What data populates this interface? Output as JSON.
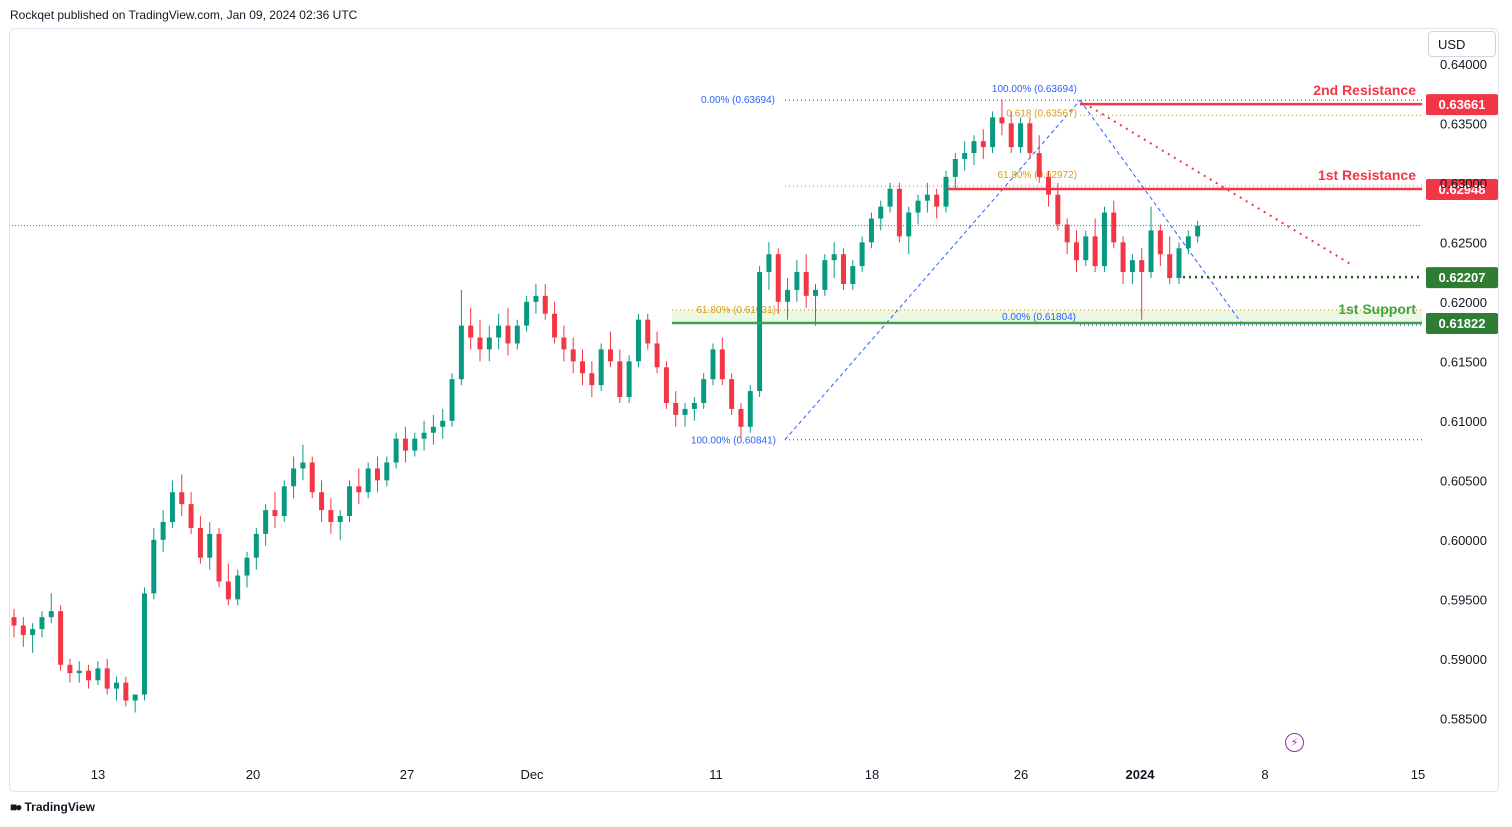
{
  "header": {
    "publisher_line": "Rockqet published on TradingView.com, Jan 09, 2024 02:36 UTC"
  },
  "currency_button": "USD",
  "footer": {
    "brand": "TradingView",
    "icon": "tradingview-logo-icon"
  },
  "colors": {
    "up": "#089981",
    "down": "#f23645",
    "resistance": "#f23645",
    "support": "#43a047",
    "fib_blue": "#2962ff",
    "fib_gold": "#d4a017",
    "trend_red": "#f23645",
    "zone_fill": "#e8f5e0"
  },
  "chart_data": {
    "type": "candlestick",
    "symbol_quote": "USD",
    "y_axis_ticks": [
      "0.64000",
      "0.63500",
      "0.63000",
      "0.62500",
      "0.62000",
      "0.61500",
      "0.61000",
      "0.60500",
      "0.60000",
      "0.59500",
      "0.59000",
      "0.58500"
    ],
    "ylim": [
      0.5815,
      0.642
    ],
    "x_axis_ticks": [
      "13",
      "20",
      "27",
      "Dec",
      "11",
      "18",
      "26",
      "2024",
      "8",
      "15"
    ],
    "last_price": 0.6264,
    "levels": [
      {
        "name": "2nd Resistance",
        "value": 0.63661,
        "label": "0.63661",
        "kind": "resistance"
      },
      {
        "name": "1st Resistance",
        "value": 0.62948,
        "label": "0.62948",
        "kind": "resistance"
      },
      {
        "name": "",
        "value": 0.62207,
        "label": "0.62207",
        "kind": "support-dotted"
      },
      {
        "name": "1st Support",
        "value": 0.61822,
        "label": "0.61822",
        "kind": "support"
      }
    ],
    "fib_labels": [
      {
        "text": "0.00% (0.63694)",
        "value": 0.63694
      },
      {
        "text": "100.00% (0.63694)",
        "value": 0.63694
      },
      {
        "text": "0.618 (0.63567)",
        "value": 0.63567
      },
      {
        "text": "61.80% (0.62972)",
        "value": 0.62972
      },
      {
        "text": "61.80% (0.61931)",
        "value": 0.61931
      },
      {
        "text": "0.00% (0.61804)",
        "value": 0.61804
      },
      {
        "text": "100.00% (0.60841)",
        "value": 0.60841
      }
    ],
    "candles": [
      [
        0.5935,
        0.5942,
        0.5918,
        0.5928
      ],
      [
        0.5928,
        0.5935,
        0.591,
        0.592
      ],
      [
        0.592,
        0.593,
        0.5905,
        0.5925
      ],
      [
        0.5925,
        0.594,
        0.5918,
        0.5935
      ],
      [
        0.5935,
        0.5955,
        0.593,
        0.594
      ],
      [
        0.594,
        0.5945,
        0.589,
        0.5895
      ],
      [
        0.5895,
        0.59,
        0.588,
        0.5888
      ],
      [
        0.5888,
        0.5898,
        0.588,
        0.589
      ],
      [
        0.589,
        0.5895,
        0.5875,
        0.5882
      ],
      [
        0.5882,
        0.5898,
        0.5878,
        0.5892
      ],
      [
        0.5892,
        0.59,
        0.587,
        0.5875
      ],
      [
        0.5875,
        0.5885,
        0.5865,
        0.588
      ],
      [
        0.588,
        0.5885,
        0.586,
        0.5865
      ],
      [
        0.5865,
        0.587,
        0.5855,
        0.587
      ],
      [
        0.587,
        0.596,
        0.5865,
        0.5955
      ],
      [
        0.5955,
        0.601,
        0.595,
        0.6
      ],
      [
        0.6,
        0.6025,
        0.599,
        0.6015
      ],
      [
        0.6015,
        0.605,
        0.601,
        0.604
      ],
      [
        0.604,
        0.6055,
        0.602,
        0.603
      ],
      [
        0.603,
        0.604,
        0.6005,
        0.601
      ],
      [
        0.601,
        0.602,
        0.598,
        0.5985
      ],
      [
        0.5985,
        0.6015,
        0.5975,
        0.6005
      ],
      [
        0.6005,
        0.601,
        0.596,
        0.5965
      ],
      [
        0.5965,
        0.598,
        0.5945,
        0.595
      ],
      [
        0.595,
        0.5975,
        0.5945,
        0.597
      ],
      [
        0.597,
        0.599,
        0.596,
        0.5985
      ],
      [
        0.5985,
        0.601,
        0.5975,
        0.6005
      ],
      [
        0.6005,
        0.603,
        0.5995,
        0.6025
      ],
      [
        0.6025,
        0.604,
        0.601,
        0.602
      ],
      [
        0.602,
        0.605,
        0.6015,
        0.6045
      ],
      [
        0.6045,
        0.607,
        0.6035,
        0.606
      ],
      [
        0.606,
        0.608,
        0.605,
        0.6065
      ],
      [
        0.6065,
        0.607,
        0.6035,
        0.604
      ],
      [
        0.604,
        0.605,
        0.6015,
        0.6025
      ],
      [
        0.6025,
        0.6035,
        0.6005,
        0.6015
      ],
      [
        0.6015,
        0.6025,
        0.6,
        0.602
      ],
      [
        0.602,
        0.605,
        0.6015,
        0.6045
      ],
      [
        0.6045,
        0.606,
        0.603,
        0.604
      ],
      [
        0.604,
        0.6065,
        0.6035,
        0.606
      ],
      [
        0.606,
        0.607,
        0.604,
        0.605
      ],
      [
        0.605,
        0.607,
        0.6045,
        0.6065
      ],
      [
        0.6065,
        0.609,
        0.606,
        0.6085
      ],
      [
        0.6085,
        0.6095,
        0.6065,
        0.6075
      ],
      [
        0.6075,
        0.609,
        0.607,
        0.6085
      ],
      [
        0.6085,
        0.61,
        0.6075,
        0.609
      ],
      [
        0.609,
        0.6105,
        0.608,
        0.6095
      ],
      [
        0.6095,
        0.611,
        0.6085,
        0.61
      ],
      [
        0.61,
        0.614,
        0.6095,
        0.6135
      ],
      [
        0.6135,
        0.621,
        0.613,
        0.618
      ],
      [
        0.618,
        0.6195,
        0.616,
        0.617
      ],
      [
        0.617,
        0.6185,
        0.615,
        0.616
      ],
      [
        0.616,
        0.618,
        0.615,
        0.617
      ],
      [
        0.617,
        0.619,
        0.616,
        0.618
      ],
      [
        0.618,
        0.6195,
        0.6155,
        0.6165
      ],
      [
        0.6165,
        0.6185,
        0.616,
        0.618
      ],
      [
        0.618,
        0.6205,
        0.6175,
        0.62
      ],
      [
        0.62,
        0.6215,
        0.619,
        0.6205
      ],
      [
        0.6205,
        0.6215,
        0.6185,
        0.619
      ],
      [
        0.619,
        0.62,
        0.6165,
        0.617
      ],
      [
        0.617,
        0.618,
        0.615,
        0.616
      ],
      [
        0.616,
        0.617,
        0.614,
        0.615
      ],
      [
        0.615,
        0.616,
        0.613,
        0.614
      ],
      [
        0.614,
        0.615,
        0.612,
        0.613
      ],
      [
        0.613,
        0.6165,
        0.6125,
        0.616
      ],
      [
        0.616,
        0.6175,
        0.6145,
        0.615
      ],
      [
        0.615,
        0.616,
        0.6115,
        0.612
      ],
      [
        0.612,
        0.6155,
        0.6115,
        0.615
      ],
      [
        0.615,
        0.619,
        0.6145,
        0.6185
      ],
      [
        0.6185,
        0.619,
        0.616,
        0.6165
      ],
      [
        0.6165,
        0.6175,
        0.614,
        0.6145
      ],
      [
        0.6145,
        0.615,
        0.611,
        0.6115
      ],
      [
        0.6115,
        0.6125,
        0.6095,
        0.6105
      ],
      [
        0.6105,
        0.6115,
        0.6095,
        0.611
      ],
      [
        0.611,
        0.612,
        0.61,
        0.6115
      ],
      [
        0.6115,
        0.614,
        0.611,
        0.6135
      ],
      [
        0.6135,
        0.6165,
        0.613,
        0.616
      ],
      [
        0.616,
        0.617,
        0.613,
        0.6135
      ],
      [
        0.6135,
        0.614,
        0.6105,
        0.611
      ],
      [
        0.611,
        0.6115,
        0.6085,
        0.6095
      ],
      [
        0.6095,
        0.613,
        0.609,
        0.6125
      ],
      [
        0.6125,
        0.623,
        0.612,
        0.6225
      ],
      [
        0.6225,
        0.625,
        0.621,
        0.624
      ],
      [
        0.624,
        0.6245,
        0.619,
        0.62
      ],
      [
        0.62,
        0.622,
        0.6185,
        0.621
      ],
      [
        0.621,
        0.6235,
        0.62,
        0.6225
      ],
      [
        0.6225,
        0.624,
        0.6195,
        0.6205
      ],
      [
        0.6205,
        0.6215,
        0.618,
        0.621
      ],
      [
        0.621,
        0.624,
        0.6205,
        0.6235
      ],
      [
        0.6235,
        0.625,
        0.622,
        0.624
      ],
      [
        0.624,
        0.6245,
        0.621,
        0.6215
      ],
      [
        0.6215,
        0.6235,
        0.621,
        0.623
      ],
      [
        0.623,
        0.6255,
        0.6225,
        0.625
      ],
      [
        0.625,
        0.6275,
        0.6245,
        0.627
      ],
      [
        0.627,
        0.6285,
        0.626,
        0.628
      ],
      [
        0.628,
        0.63,
        0.6275,
        0.6295
      ],
      [
        0.6295,
        0.63,
        0.625,
        0.6255
      ],
      [
        0.6255,
        0.628,
        0.624,
        0.6275
      ],
      [
        0.6275,
        0.629,
        0.6265,
        0.6285
      ],
      [
        0.6285,
        0.63,
        0.6275,
        0.629
      ],
      [
        0.629,
        0.6295,
        0.627,
        0.628
      ],
      [
        0.628,
        0.631,
        0.6275,
        0.6305
      ],
      [
        0.6305,
        0.6325,
        0.6295,
        0.632
      ],
      [
        0.632,
        0.6335,
        0.631,
        0.6325
      ],
      [
        0.6325,
        0.634,
        0.6315,
        0.6335
      ],
      [
        0.6335,
        0.6345,
        0.632,
        0.633
      ],
      [
        0.633,
        0.636,
        0.6325,
        0.6355
      ],
      [
        0.6355,
        0.637,
        0.634,
        0.635
      ],
      [
        0.635,
        0.636,
        0.6325,
        0.633
      ],
      [
        0.633,
        0.6355,
        0.6325,
        0.635
      ],
      [
        0.635,
        0.6355,
        0.632,
        0.6325
      ],
      [
        0.6325,
        0.634,
        0.63,
        0.6305
      ],
      [
        0.6305,
        0.631,
        0.628,
        0.629
      ],
      [
        0.629,
        0.63,
        0.626,
        0.6265
      ],
      [
        0.6265,
        0.627,
        0.624,
        0.625
      ],
      [
        0.625,
        0.626,
        0.6225,
        0.6235
      ],
      [
        0.6235,
        0.626,
        0.623,
        0.6255
      ],
      [
        0.6255,
        0.627,
        0.6225,
        0.623
      ],
      [
        0.623,
        0.628,
        0.6225,
        0.6275
      ],
      [
        0.6275,
        0.6285,
        0.6245,
        0.625
      ],
      [
        0.625,
        0.6255,
        0.6215,
        0.6225
      ],
      [
        0.6225,
        0.624,
        0.6215,
        0.6235
      ],
      [
        0.6235,
        0.6245,
        0.6185,
        0.6225
      ],
      [
        0.6225,
        0.628,
        0.622,
        0.626
      ],
      [
        0.626,
        0.6265,
        0.623,
        0.624
      ],
      [
        0.624,
        0.6255,
        0.6215,
        0.622
      ],
      [
        0.622,
        0.625,
        0.6215,
        0.6245
      ],
      [
        0.6245,
        0.626,
        0.624,
        0.6255
      ],
      [
        0.6255,
        0.6268,
        0.625,
        0.6264
      ]
    ]
  }
}
